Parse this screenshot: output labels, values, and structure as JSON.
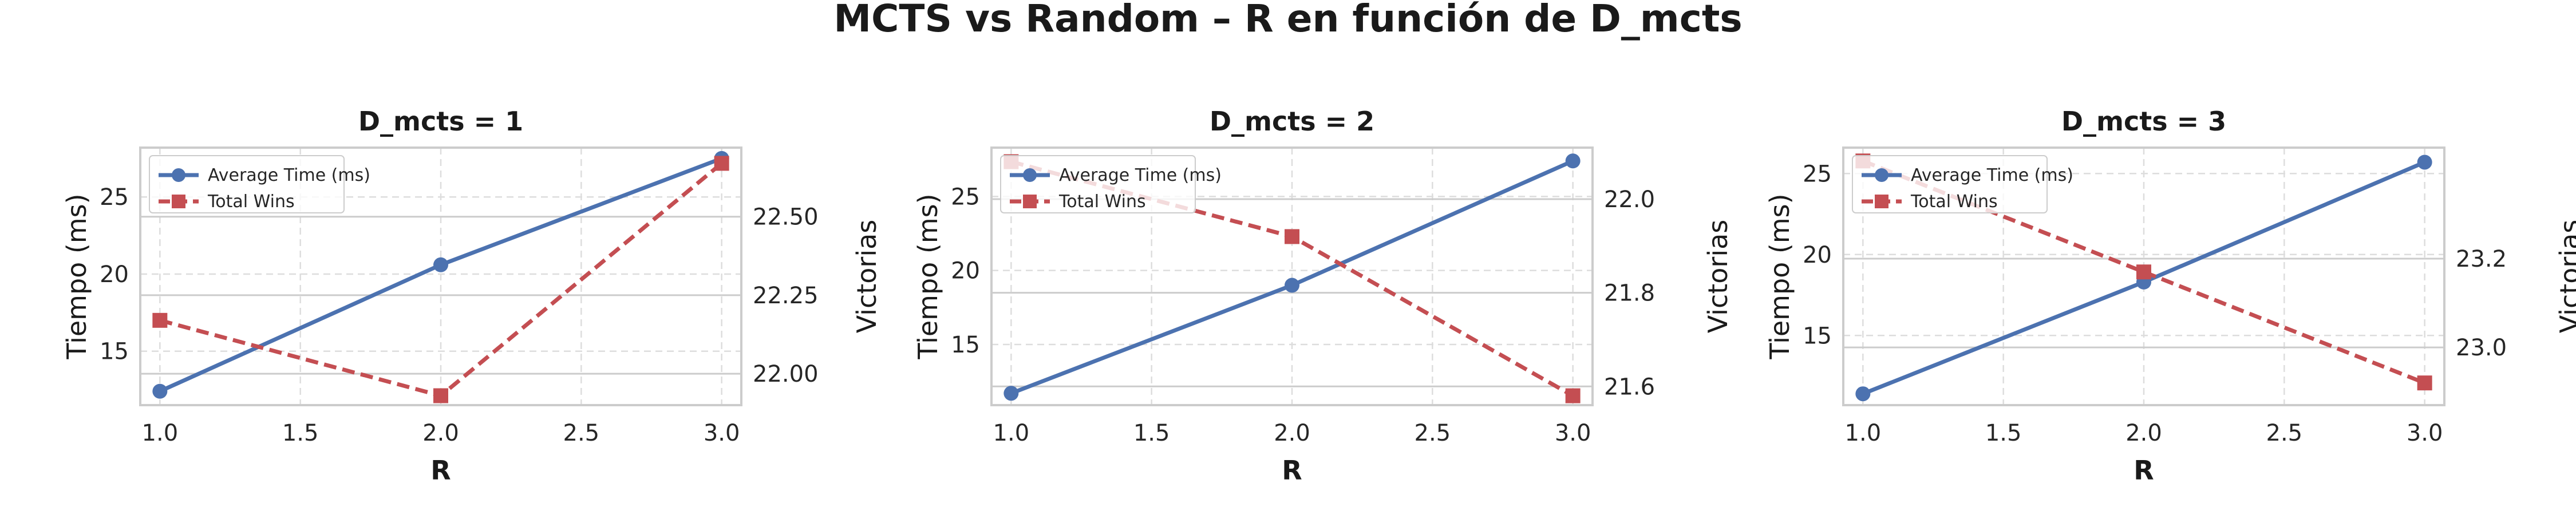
{
  "suptitle": "MCTS vs Random – R en función de D_mcts",
  "colors": {
    "time": "#4c72b0",
    "wins": "#c44e52",
    "grid": "#dddddd",
    "frame": "#cccccc"
  },
  "chart_data": [
    {
      "type": "line",
      "title": "D_mcts = 1",
      "xlabel": "R",
      "ylabel": "Tiempo (ms)",
      "ylabel_right": "Victorias",
      "x": [
        1.0,
        2.0,
        3.0
      ],
      "xlim": [
        0.93,
        3.07
      ],
      "xticks": [
        "1.0",
        "1.5",
        "2.0",
        "2.5",
        "3.0"
      ],
      "ylim": [
        11.5,
        28.2
      ],
      "yticks": [
        "15",
        "20",
        "25"
      ],
      "ylim_right": [
        21.9,
        22.72
      ],
      "yticks_right": [
        "22.00",
        "22.25",
        "22.50"
      ],
      "grid": true,
      "legend": "top-left",
      "series": [
        {
          "name": "Average Time (ms)",
          "axis": "left",
          "style": "solid",
          "marker": "circle",
          "values": [
            12.4,
            20.6,
            27.5
          ]
        },
        {
          "name": "Total Wins",
          "axis": "right",
          "style": "dashed",
          "marker": "square",
          "values": [
            22.17,
            21.93,
            22.67
          ]
        }
      ]
    },
    {
      "type": "line",
      "title": "D_mcts = 2",
      "xlabel": "R",
      "ylabel": "Tiempo (ms)",
      "ylabel_right": "Victorias",
      "x": [
        1.0,
        2.0,
        3.0
      ],
      "xlim": [
        0.93,
        3.07
      ],
      "xticks": [
        "1.0",
        "1.5",
        "2.0",
        "2.5",
        "3.0"
      ],
      "ylim": [
        10.9,
        28.3
      ],
      "yticks": [
        "15",
        "20",
        "25"
      ],
      "ylim_right": [
        21.56,
        22.11
      ],
      "yticks_right": [
        "21.6",
        "21.8",
        "22.0"
      ],
      "grid": true,
      "legend": "top-left",
      "series": [
        {
          "name": "Average Time (ms)",
          "axis": "left",
          "style": "solid",
          "marker": "circle",
          "values": [
            11.7,
            19.0,
            27.4
          ]
        },
        {
          "name": "Total Wins",
          "axis": "right",
          "style": "dashed",
          "marker": "square",
          "values": [
            22.08,
            21.92,
            21.58
          ]
        }
      ]
    },
    {
      "type": "line",
      "title": "D_mcts = 3",
      "xlabel": "R",
      "ylabel": "Tiempo (ms)",
      "ylabel_right": "Victorias",
      "x": [
        1.0,
        2.0,
        3.0
      ],
      "xlim": [
        0.93,
        3.07
      ],
      "xticks": [
        "1.0",
        "1.5",
        "2.0",
        "2.5",
        "3.0"
      ],
      "ylim": [
        10.7,
        26.6
      ],
      "yticks": [
        "15",
        "20",
        "25"
      ],
      "ylim_right": [
        22.87,
        23.45
      ],
      "yticks_right": [
        "23.0",
        "23.2"
      ],
      "grid": true,
      "legend": "top-left",
      "series": [
        {
          "name": "Average Time (ms)",
          "axis": "left",
          "style": "solid",
          "marker": "circle",
          "values": [
            11.4,
            18.3,
            25.7
          ]
        },
        {
          "name": "Total Wins",
          "axis": "right",
          "style": "dashed",
          "marker": "square",
          "values": [
            23.42,
            23.17,
            22.92
          ]
        }
      ]
    }
  ]
}
